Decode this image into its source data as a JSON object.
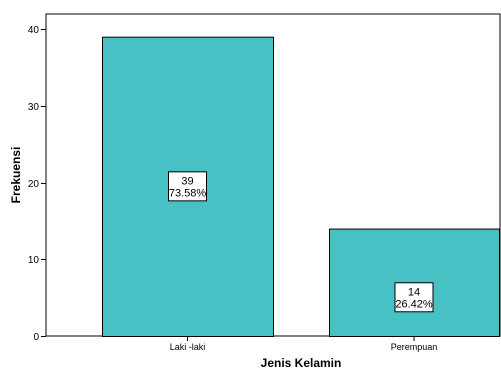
{
  "chart_data": {
    "type": "bar",
    "xlabel": "Jenis Kelamin",
    "ylabel": "Frekuensi",
    "ylim": [
      0,
      40
    ],
    "yticks": [
      "0",
      "10",
      "20",
      "30",
      "40"
    ],
    "categories": [
      "Laki -laki",
      "Perempuan"
    ],
    "values": [
      39,
      14
    ],
    "percent_labels": [
      "73.58%",
      "26.42%"
    ],
    "count_labels": [
      "39",
      "14"
    ],
    "grid": false,
    "bar_color": "#47c1c4",
    "bar_edge_color": "#000000"
  }
}
